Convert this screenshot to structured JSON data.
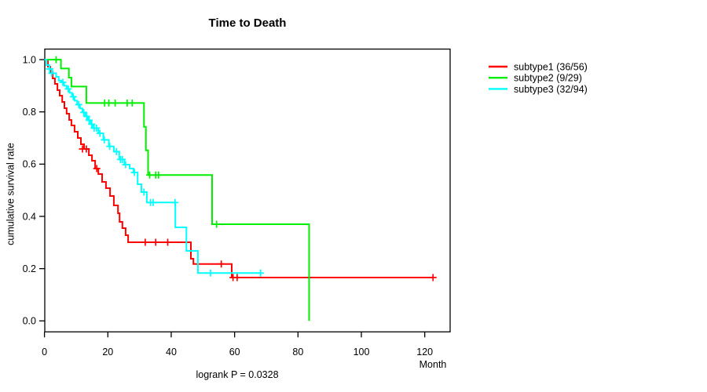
{
  "figure": {
    "title": "Time to Death",
    "x_axis_label": "Month",
    "y_axis_label": "cumulative survival rate",
    "footer": "logrank P = 0.0328"
  },
  "chart_data": {
    "type": "line",
    "variant": "kaplan-meier-step",
    "title": "Time to Death",
    "xlabel": "Month",
    "ylabel": "cumulative survival rate",
    "annotation": "logrank P = 0.0328",
    "grid": false,
    "legend_position": "right",
    "xlim": [
      0,
      128
    ],
    "ylim": [
      0,
      1
    ],
    "xticks": [
      0,
      20,
      40,
      60,
      80,
      100,
      120
    ],
    "yticks": [
      "0.0",
      "0.2",
      "0.4",
      "0.6",
      "0.8",
      "1.0"
    ],
    "axis_color": "#000000",
    "series": [
      {
        "name": "subtype1 (36/56)",
        "color": "#ff0000",
        "steps": [
          [
            0,
            1.0
          ],
          [
            1.1,
            0.973
          ],
          [
            1.8,
            0.952
          ],
          [
            2.6,
            0.928
          ],
          [
            3.3,
            0.907
          ],
          [
            4.1,
            0.883
          ],
          [
            4.8,
            0.862
          ],
          [
            5.6,
            0.838
          ],
          [
            6.3,
            0.814
          ],
          [
            7.0,
            0.793
          ],
          [
            7.8,
            0.769
          ],
          [
            8.5,
            0.748
          ],
          [
            9.5,
            0.724
          ],
          [
            10.5,
            0.7
          ],
          [
            11.5,
            0.676
          ],
          [
            12.5,
            0.658
          ],
          [
            14.0,
            0.634
          ],
          [
            15.0,
            0.613
          ],
          [
            16.0,
            0.583
          ],
          [
            17.0,
            0.562
          ],
          [
            18.2,
            0.532
          ],
          [
            19.4,
            0.508
          ],
          [
            20.7,
            0.478
          ],
          [
            21.9,
            0.442
          ],
          [
            23.2,
            0.412
          ],
          [
            23.7,
            0.379
          ],
          [
            24.6,
            0.355
          ],
          [
            25.6,
            0.328
          ],
          [
            26.4,
            0.301
          ],
          [
            46.2,
            0.238
          ],
          [
            47.0,
            0.218
          ],
          [
            59.1,
            0.166
          ],
          [
            122.6,
            0.166
          ]
        ],
        "censors": [
          [
            12.0,
            0.658
          ],
          [
            13.2,
            0.658
          ],
          [
            16.5,
            0.583
          ],
          [
            31.8,
            0.301
          ],
          [
            35.1,
            0.301
          ],
          [
            38.9,
            0.301
          ],
          [
            55.8,
            0.218
          ],
          [
            59.5,
            0.166
          ],
          [
            60.8,
            0.166
          ],
          [
            122.6,
            0.166
          ]
        ]
      },
      {
        "name": "subtype2 (9/29)",
        "color": "#00ee00",
        "steps": [
          [
            0,
            1.0
          ],
          [
            5.2,
            0.966
          ],
          [
            7.7,
            0.931
          ],
          [
            8.5,
            0.897
          ],
          [
            13.2,
            0.834
          ],
          [
            31.4,
            0.743
          ],
          [
            32.0,
            0.653
          ],
          [
            32.7,
            0.558
          ],
          [
            52.9,
            0.37
          ],
          [
            83.5,
            0.0
          ]
        ],
        "censors": [
          [
            3.7,
            1.0
          ],
          [
            19.0,
            0.834
          ],
          [
            20.3,
            0.834
          ],
          [
            22.3,
            0.834
          ],
          [
            26.1,
            0.834
          ],
          [
            27.7,
            0.834
          ],
          [
            33.2,
            0.558
          ],
          [
            35.1,
            0.558
          ],
          [
            36.0,
            0.558
          ],
          [
            54.3,
            0.37
          ]
        ]
      },
      {
        "name": "subtype3 (32/94)",
        "color": "#00ffff",
        "steps": [
          [
            0,
            1.0
          ],
          [
            0.7,
            0.979
          ],
          [
            1.5,
            0.964
          ],
          [
            2.5,
            0.948
          ],
          [
            3.7,
            0.934
          ],
          [
            4.5,
            0.92
          ],
          [
            5.4,
            0.913
          ],
          [
            6.2,
            0.9
          ],
          [
            7.0,
            0.888
          ],
          [
            7.9,
            0.873
          ],
          [
            8.7,
            0.858
          ],
          [
            9.5,
            0.843
          ],
          [
            10.3,
            0.828
          ],
          [
            11.2,
            0.813
          ],
          [
            12.0,
            0.798
          ],
          [
            12.9,
            0.783
          ],
          [
            13.7,
            0.768
          ],
          [
            14.5,
            0.753
          ],
          [
            15.3,
            0.738
          ],
          [
            17.0,
            0.718
          ],
          [
            18.6,
            0.693
          ],
          [
            20.3,
            0.668
          ],
          [
            21.9,
            0.648
          ],
          [
            23.6,
            0.618
          ],
          [
            25.2,
            0.598
          ],
          [
            26.9,
            0.583
          ],
          [
            28.1,
            0.568
          ],
          [
            29.4,
            0.523
          ],
          [
            30.6,
            0.493
          ],
          [
            32.3,
            0.453
          ],
          [
            41.3,
            0.358
          ],
          [
            44.8,
            0.268
          ],
          [
            48.4,
            0.183
          ],
          [
            68.6,
            0.183
          ]
        ],
        "censors": [
          [
            1.6,
            0.964
          ],
          [
            2.3,
            0.948
          ],
          [
            5.8,
            0.913
          ],
          [
            7.5,
            0.888
          ],
          [
            9.1,
            0.858
          ],
          [
            10.8,
            0.828
          ],
          [
            12.4,
            0.798
          ],
          [
            13.3,
            0.783
          ],
          [
            14.1,
            0.768
          ],
          [
            14.9,
            0.753
          ],
          [
            15.7,
            0.738
          ],
          [
            16.4,
            0.738
          ],
          [
            17.5,
            0.718
          ],
          [
            18.9,
            0.693
          ],
          [
            20.6,
            0.668
          ],
          [
            22.7,
            0.648
          ],
          [
            24.0,
            0.618
          ],
          [
            24.6,
            0.618
          ],
          [
            25.6,
            0.598
          ],
          [
            28.4,
            0.568
          ],
          [
            31.4,
            0.493
          ],
          [
            33.5,
            0.453
          ],
          [
            34.3,
            0.453
          ],
          [
            41.2,
            0.453
          ],
          [
            52.4,
            0.183
          ],
          [
            68.2,
            0.183
          ]
        ]
      }
    ]
  }
}
